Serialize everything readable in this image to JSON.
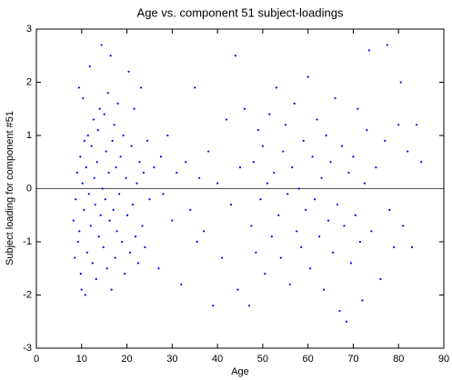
{
  "chart_data": {
    "type": "scatter",
    "title": "Age vs. component 51 subject-loadings",
    "x_label": "Age",
    "y_label": "Subject loading for component #51",
    "color": "#0000ff",
    "hline": 0,
    "xlim": [
      0,
      90
    ],
    "xticks": [
      0,
      10,
      20,
      30,
      40,
      50,
      60,
      70,
      80,
      90
    ],
    "ylim": [
      -3,
      3
    ],
    "yticks": [
      -3,
      -2,
      -1,
      0,
      1,
      2,
      3
    ],
    "x": [
      8.2,
      8.5,
      8.7,
      9,
      9.2,
      9.4,
      9.5,
      9.7,
      9.8,
      10,
      10.2,
      10.3,
      10.5,
      10.6,
      10.8,
      11,
      11.2,
      11.4,
      11.6,
      11.8,
      12,
      12.2,
      12.4,
      12.6,
      12.8,
      13,
      13.2,
      13.4,
      13.6,
      13.8,
      14,
      14.2,
      14.4,
      14.6,
      14.8,
      15,
      15.2,
      15.4,
      15.6,
      15.8,
      16,
      16.2,
      16.4,
      16.6,
      16.8,
      17,
      17.2,
      17.4,
      17.6,
      17.8,
      18,
      18.3,
      18.6,
      18.9,
      19.2,
      19.5,
      19.8,
      20.1,
      20.4,
      20.7,
      21,
      21.3,
      21.6,
      21.9,
      22.2,
      22.5,
      22.8,
      23.1,
      23.4,
      23.7,
      24,
      24.5,
      25,
      26,
      27,
      27.5,
      28,
      29,
      30,
      31,
      32,
      33,
      34,
      35,
      35.5,
      36,
      37,
      38,
      39,
      40,
      41,
      42,
      43,
      44,
      44.5,
      45,
      46,
      47,
      47.5,
      48,
      48.5,
      49,
      49.5,
      50,
      50.5,
      51,
      51.5,
      52,
      52.5,
      53,
      53.5,
      54,
      54.5,
      55,
      55.5,
      56,
      56.5,
      57,
      57.5,
      58,
      58.5,
      59,
      59.5,
      60,
      60.5,
      61,
      61.5,
      62,
      62.5,
      63,
      63.5,
      64,
      64.5,
      65,
      65.5,
      66,
      66.5,
      67,
      67.5,
      68,
      68.5,
      69,
      69.5,
      70,
      70.5,
      71,
      71.5,
      72,
      72.5,
      73,
      73.5,
      74,
      75,
      76,
      77,
      77.5,
      78,
      79,
      80,
      80.5,
      81,
      82,
      83,
      84,
      85
    ],
    "values": [
      -0.6,
      -1.3,
      -0.2,
      0.3,
      -1.0,
      1.9,
      -0.8,
      0.6,
      -1.6,
      -1.9,
      0.1,
      1.7,
      -0.4,
      0.9,
      -2.0,
      0.4,
      -1.2,
      1.0,
      -0.1,
      2.3,
      -0.7,
      0.8,
      -1.4,
      1.3,
      0.2,
      -0.3,
      -1.7,
      0.5,
      1.1,
      -0.9,
      1.5,
      -0.5,
      2.7,
      0.0,
      -1.1,
      1.4,
      -0.2,
      0.7,
      -1.5,
      1.8,
      0.3,
      -0.6,
      2.5,
      -1.9,
      0.9,
      -0.4,
      1.2,
      -1.3,
      0.4,
      -0.8,
      1.6,
      -0.1,
      0.6,
      -1.0,
      1.0,
      -1.6,
      0.2,
      -0.5,
      2.2,
      -1.2,
      0.8,
      -0.3,
      1.5,
      -0.9,
      0.1,
      -1.4,
      0.5,
      1.9,
      -0.7,
      0.3,
      -1.1,
      0.9,
      -0.2,
      0.4,
      -1.5,
      0.6,
      -0.1,
      1.0,
      -0.6,
      0.3,
      -1.8,
      0.5,
      -0.4,
      1.9,
      -1.0,
      0.2,
      -0.8,
      0.7,
      -2.2,
      0.1,
      -1.3,
      1.3,
      -0.3,
      2.5,
      -1.9,
      0.4,
      1.5,
      -2.2,
      -0.7,
      0.5,
      -1.2,
      1.1,
      -0.2,
      0.8,
      -1.6,
      0.1,
      1.4,
      -0.9,
      0.3,
      1.9,
      -0.5,
      -1.3,
      0.7,
      1.2,
      -0.1,
      -1.8,
      0.4,
      1.6,
      -0.8,
      0.0,
      -1.1,
      0.9,
      -0.4,
      2.1,
      -1.5,
      0.6,
      -0.2,
      1.3,
      -0.9,
      0.2,
      -1.9,
      1.0,
      -0.6,
      0.5,
      -1.2,
      1.7,
      -0.3,
      -2.3,
      0.8,
      -0.7,
      -2.5,
      0.3,
      -1.4,
      0.6,
      -0.5,
      1.5,
      -1.0,
      -2.1,
      0.1,
      1.1,
      2.6,
      -0.8,
      0.4,
      -1.7,
      0.9,
      2.7,
      -0.4,
      -1.1,
      1.2,
      2.0,
      -0.7,
      0.7,
      -1.1,
      1.2,
      0.5
    ]
  }
}
